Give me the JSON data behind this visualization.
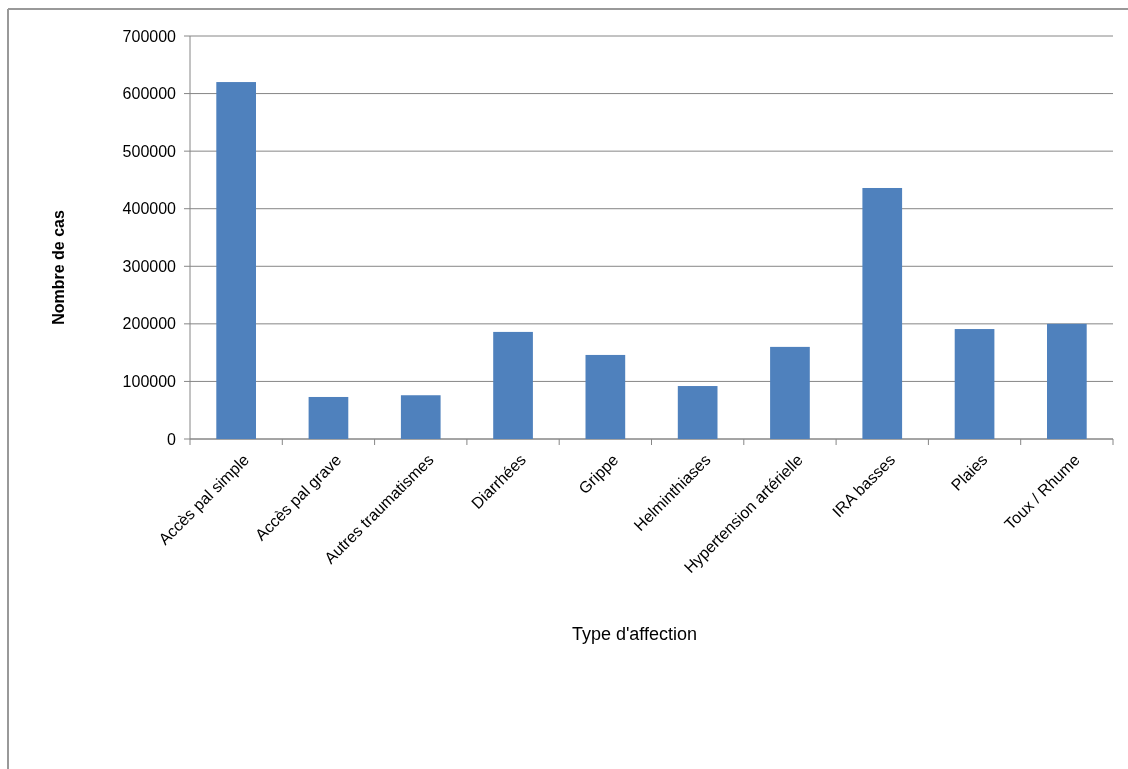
{
  "chart_data": {
    "type": "bar",
    "xlabel": "Type d'affection",
    "ylabel": "Nombre de cas",
    "categories": [
      "Accès pal simple",
      "Accès pal grave",
      "Autres traumatismes",
      "Diarrhées",
      "Grippe",
      "Helminthiases",
      "Hypertension artérielle",
      "IRA basses",
      "Plaies",
      "Toux / Rhume"
    ],
    "values": [
      620000,
      73000,
      76000,
      186000,
      146000,
      92000,
      160000,
      436000,
      191000,
      200000
    ],
    "color": "#4f81bd",
    "ylim": [
      0,
      700000
    ],
    "yticks": [
      0,
      100000,
      200000,
      300000,
      400000,
      500000,
      600000,
      700000
    ],
    "grid": "y"
  }
}
